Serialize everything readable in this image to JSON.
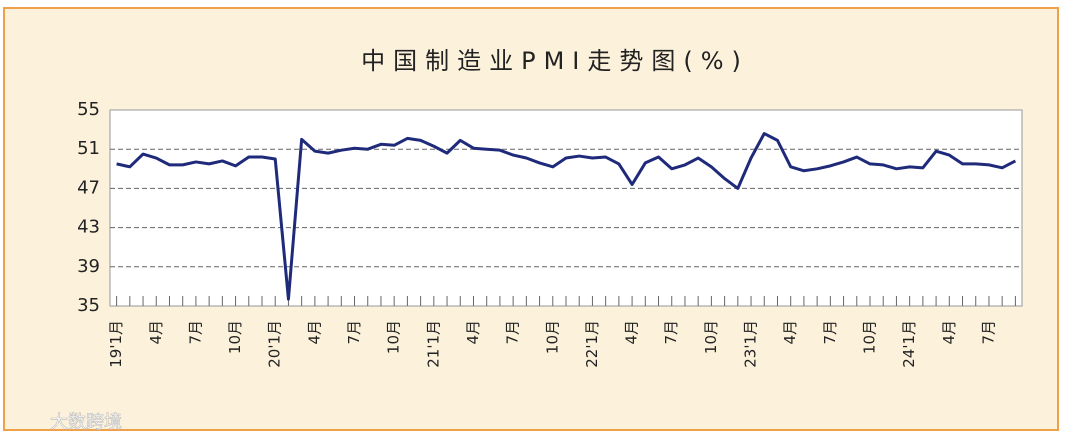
{
  "chart_data": {
    "type": "line",
    "title": "中国制造业PMI走势图(%)",
    "categories": [
      "19'1月",
      null,
      null,
      "4月",
      null,
      null,
      "7月",
      null,
      null,
      "10月",
      null,
      null,
      "20'1月",
      null,
      null,
      "4月",
      null,
      null,
      "7月",
      null,
      null,
      "10月",
      null,
      null,
      "21'1月",
      null,
      null,
      "4月",
      null,
      null,
      "7月",
      null,
      null,
      "10月",
      null,
      null,
      "22'1月",
      null,
      null,
      "4月",
      null,
      null,
      "7月",
      null,
      null,
      "10月",
      null,
      null,
      "23'1月",
      null,
      null,
      "4月",
      null,
      null,
      "7月",
      null,
      null,
      "10月",
      null,
      null,
      "24'1月",
      null,
      null,
      "4月",
      null,
      null,
      "7月",
      null,
      null
    ],
    "series": [
      {
        "color": "#1f2a7a",
        "values": [
          49.5,
          49.2,
          50.5,
          50.1,
          49.4,
          49.4,
          49.7,
          49.5,
          49.8,
          49.3,
          50.2,
          50.2,
          50.0,
          35.7,
          52.0,
          50.8,
          50.6,
          50.9,
          51.1,
          51.0,
          51.5,
          51.4,
          52.1,
          51.9,
          51.3,
          50.6,
          51.9,
          51.1,
          51.0,
          50.9,
          50.4,
          50.1,
          49.6,
          49.2,
          50.1,
          50.3,
          50.1,
          50.2,
          49.5,
          47.4,
          49.6,
          50.2,
          49.0,
          49.4,
          50.1,
          49.2,
          48.0,
          47.0,
          50.1,
          52.6,
          51.9,
          49.2,
          48.8,
          49.0,
          49.3,
          49.7,
          50.2,
          49.5,
          49.4,
          49.0,
          49.2,
          49.1,
          50.8,
          50.4,
          49.5,
          49.5,
          49.4,
          49.1,
          49.8
        ]
      }
    ],
    "ylim": [
      35,
      55
    ],
    "yticks": [
      35,
      39,
      43,
      47,
      51,
      55
    ],
    "grid": true,
    "watermark": "大数跨境"
  }
}
